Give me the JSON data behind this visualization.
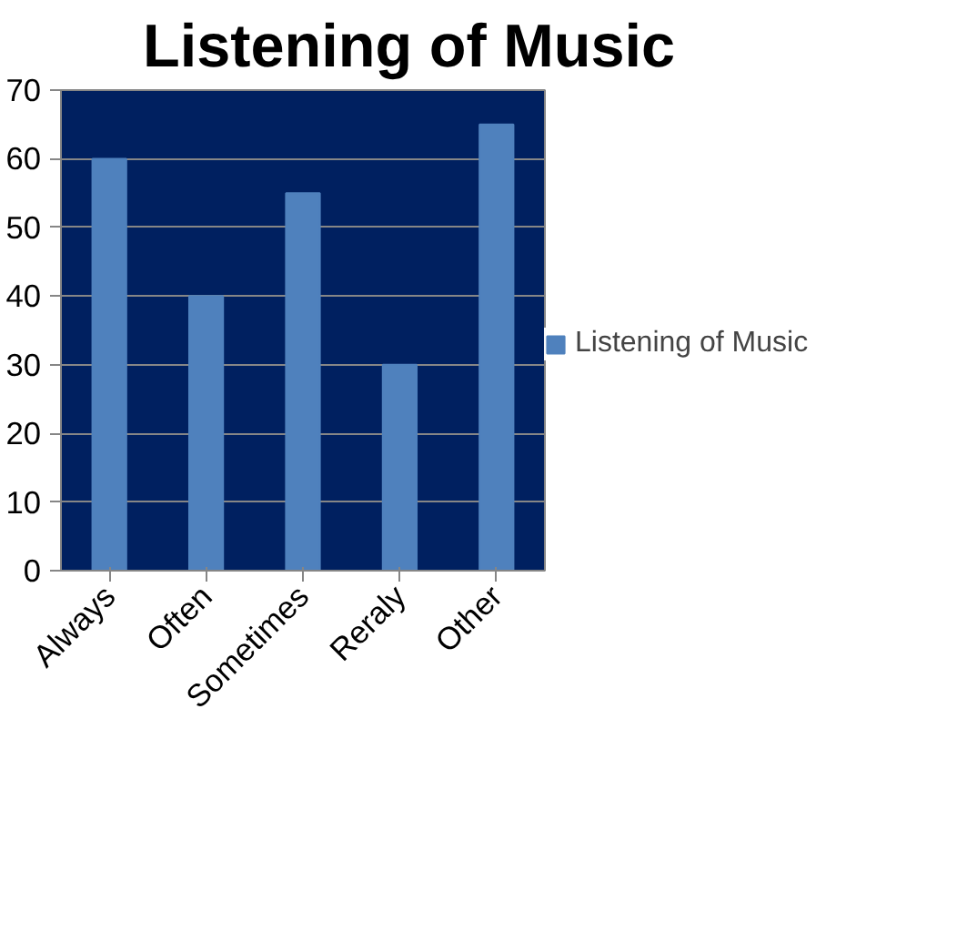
{
  "chart_data": {
    "type": "bar",
    "title": "Listening of Music",
    "categories": [
      "Always",
      "Often",
      "Sometimes",
      "Reraly",
      "Other"
    ],
    "series": [
      {
        "name": "Listening of Music",
        "color": "#4f81bd",
        "values": [
          60,
          40,
          55,
          30,
          65
        ]
      }
    ],
    "ylim": [
      0,
      70
    ],
    "yticks": [
      0,
      10,
      20,
      30,
      40,
      50,
      60,
      70
    ],
    "grid": "y",
    "legend": "right"
  }
}
